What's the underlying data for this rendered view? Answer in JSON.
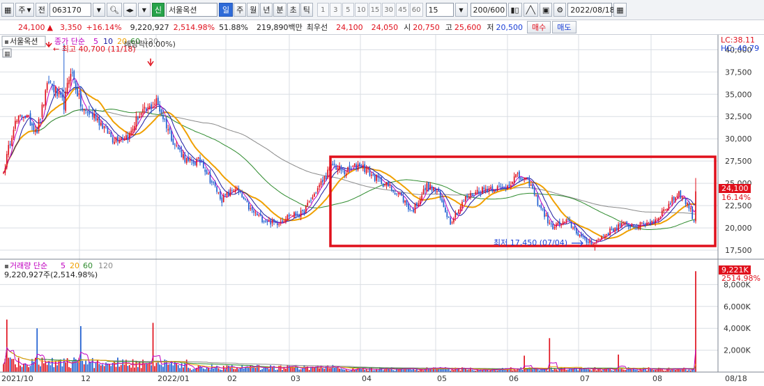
{
  "toolbar": {
    "market_toggle": "주",
    "prev_label": "전",
    "code": "063170",
    "badge": "신",
    "stock_name": "서울옥션",
    "periods": [
      "일",
      "주",
      "월",
      "년",
      "분",
      "초",
      "틱"
    ],
    "active_period": "일",
    "intervals": [
      "1",
      "3",
      "5",
      "10",
      "15",
      "30",
      "45",
      "60"
    ],
    "interval_value": "15",
    "count_value": "200/600",
    "date": "2022/08/18"
  },
  "quote": {
    "price": "24,100",
    "change_arrow": "▲",
    "change": "3,350",
    "change_pct": "+16.14%",
    "volume": "9,220,927",
    "volume_pct": "2,514.98%",
    "ratio": "51.88%",
    "amount": "219,890백만",
    "best_bid_label": "최우선",
    "best_ask": "24,100",
    "best_bid": "24,050",
    "open_label": "시",
    "open": "20,750",
    "high_label": "고",
    "high": "25,600",
    "low_label": "저",
    "low": "20,500",
    "buy_label": "매수",
    "sell_label": "매도"
  },
  "colors": {
    "up": "#e0101c",
    "down": "#1f5fd1",
    "ma5": "#c000c0",
    "ma10": "#1a1aa0",
    "ma20": "#f0a000",
    "ma60": "#2e8b2e",
    "ma120": "#8a8a8a",
    "highlight_box": "#e0101c"
  },
  "price_panel": {
    "name_tag": "서울옥션",
    "legend_prefix": "종가 단순",
    "legend_periods": [
      "5",
      "10",
      "20",
      "60",
      "120"
    ],
    "top_right_lc": "LC:38.11",
    "top_right_hc": "HC:-40.79",
    "last_price_label": "24,100",
    "last_pct_label": "16.14%",
    "high_annotation": "최고 40,700 (11/18)",
    "low_annotation": "최저 17,450 (07/04)",
    "ex_annotation": "배당락(0.00%)"
  },
  "volume_panel": {
    "legend_prefix": "거래량 단순",
    "legend_periods": [
      "5",
      "20",
      "60",
      "120"
    ],
    "value_label": "9,220,927주(2,514.98%)",
    "last_vol_label": "9,221K",
    "last_vol_pct": "2514.98%"
  },
  "chart_data": {
    "type": "candlestick",
    "price_axis": {
      "ticks": [
        "40,000",
        "37,500",
        "35,000",
        "32,500",
        "30,000",
        "27,500",
        "25,000",
        "22,500",
        "20,000",
        "17,500"
      ],
      "ylim": [
        16800,
        41200
      ]
    },
    "volume_axis": {
      "ticks": [
        "8,000K",
        "6,000K",
        "4,000K",
        "2,000K"
      ],
      "ylim": [
        0,
        9300
      ]
    },
    "x_ticks": [
      "2021/10",
      "12",
      "2022/01",
      "02",
      "03",
      "04",
      "05",
      "06",
      "07",
      "08",
      "08/18"
    ],
    "anchors": {
      "close": [
        [
          0,
          26200
        ],
        [
          6,
          31500
        ],
        [
          12,
          32800
        ],
        [
          20,
          31000
        ],
        [
          27,
          36500
        ],
        [
          32,
          35000
        ],
        [
          36,
          33800
        ],
        [
          40,
          37800
        ],
        [
          47,
          33200
        ],
        [
          55,
          32500
        ],
        [
          65,
          30000
        ],
        [
          75,
          30400
        ],
        [
          80,
          32500
        ],
        [
          86,
          33300
        ],
        [
          91,
          34200
        ],
        [
          96,
          32000
        ],
        [
          102,
          29400
        ],
        [
          110,
          27300
        ],
        [
          118,
          27500
        ],
        [
          122,
          25800
        ],
        [
          130,
          23200
        ],
        [
          138,
          24500
        ],
        [
          147,
          22000
        ],
        [
          154,
          21000
        ],
        [
          162,
          20500
        ],
        [
          170,
          21400
        ],
        [
          178,
          21600
        ],
        [
          187,
          24400
        ],
        [
          196,
          27100
        ],
        [
          203,
          26200
        ],
        [
          212,
          27200
        ],
        [
          220,
          25800
        ],
        [
          228,
          24800
        ],
        [
          236,
          23700
        ],
        [
          243,
          21800
        ],
        [
          252,
          24700
        ],
        [
          258,
          24100
        ],
        [
          266,
          20700
        ],
        [
          275,
          23300
        ],
        [
          283,
          24200
        ],
        [
          290,
          24500
        ],
        [
          298,
          24400
        ],
        [
          305,
          25800
        ],
        [
          313,
          25100
        ],
        [
          318,
          22900
        ],
        [
          326,
          20100
        ],
        [
          336,
          20700
        ],
        [
          346,
          18500
        ],
        [
          352,
          18400
        ],
        [
          360,
          19500
        ],
        [
          368,
          20400
        ],
        [
          378,
          20200
        ],
        [
          388,
          20900
        ],
        [
          396,
          22600
        ],
        [
          402,
          24000
        ],
        [
          408,
          22400
        ],
        [
          411,
          20800
        ],
        [
          412,
          24100
        ]
      ],
      "volume_spikes": [
        [
          2,
          4800
        ],
        [
          20,
          4000
        ],
        [
          46,
          4200
        ],
        [
          89,
          4500
        ],
        [
          310,
          1500
        ],
        [
          325,
          3100
        ],
        [
          366,
          1600
        ],
        [
          412,
          9221
        ]
      ]
    }
  }
}
